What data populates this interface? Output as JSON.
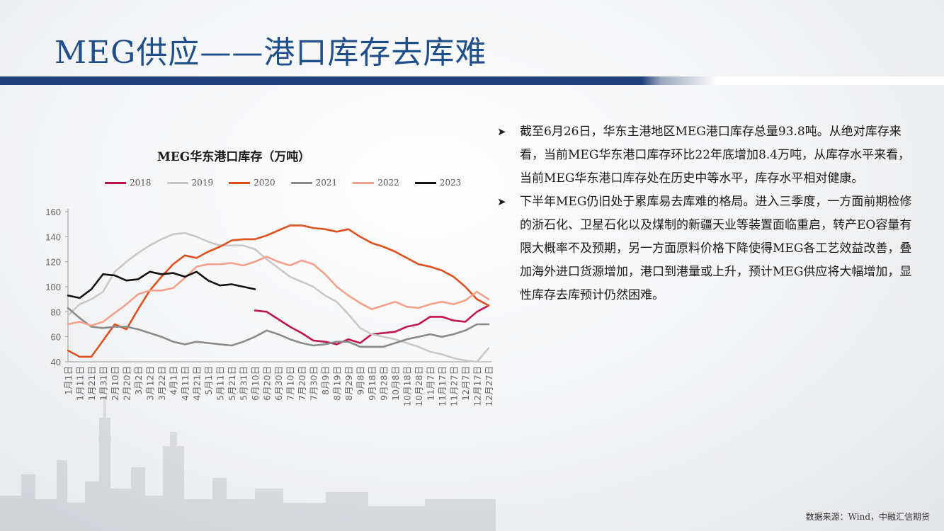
{
  "page": {
    "title": "MEG供应——港口库存去库难",
    "source": "数据来源：Wind，中融汇信期货"
  },
  "bullets": [
    "截至6月26日，华东主港地区MEG港口库存总量93.8吨。从绝对库存来看，当前MEG华东港口库存环比22年底增加8.4万吨，从库存水平来看，当前MEG华东港口库存处在历史中等水平，库存水平相对健康。",
    "下半年MEG仍旧处于累库易去库难的格局。进入三季度，一方面前期检修的浙石化、卫星石化以及煤制的新疆天业等装置面临重启，转产EO容量有限大概率不及预期，另一方面原料价格下降使得MEG各工艺效益改善，叠加海外进口货源增加，港口到港量或上升，预计MEG供应将大幅增加，显性库存去库预计仍然困难。"
  ],
  "chart_data": {
    "type": "line",
    "title": "MEG华东港口库存（万吨）",
    "ylim": [
      40,
      160
    ],
    "yticks": [
      40,
      60,
      80,
      100,
      120,
      140,
      160
    ],
    "grid": false,
    "legend": "top",
    "categories": [
      "1月1日",
      "1月11日",
      "1月21日",
      "1月31日",
      "2月10日",
      "2月20日",
      "3月2日",
      "3月12日",
      "3月22日",
      "4月1日",
      "4月11日",
      "4月21日",
      "5月1日",
      "5月11日",
      "5月21日",
      "5月31日",
      "6月10日",
      "6月20日",
      "6月30日",
      "7月10日",
      "7月20日",
      "7月30日",
      "8月9日",
      "8月19日",
      "8月29日",
      "9月8日",
      "9月18日",
      "9月28日",
      "10月8日",
      "10月18日",
      "10月28日",
      "11月7日",
      "11月17日",
      "11月27日",
      "12月7日",
      "12月17日",
      "12月27日"
    ],
    "series": [
      {
        "name": "2018",
        "color": "#c0144c",
        "values": [
          null,
          null,
          null,
          null,
          null,
          null,
          null,
          null,
          null,
          null,
          null,
          null,
          null,
          null,
          null,
          null,
          81,
          80,
          74,
          68,
          63,
          57,
          56,
          54,
          58,
          55,
          62,
          63,
          64,
          68,
          70,
          76,
          76,
          73,
          72,
          80,
          85
        ]
      },
      {
        "name": "2019",
        "color": "#c8c8c8",
        "values": [
          77,
          86,
          90,
          96,
          112,
          120,
          127,
          133,
          138,
          142,
          143,
          140,
          136,
          133,
          133,
          133,
          130,
          122,
          115,
          108,
          104,
          100,
          93,
          88,
          78,
          67,
          62,
          60,
          58,
          55,
          52,
          48,
          46,
          43,
          41,
          40,
          51
        ]
      },
      {
        "name": "2020",
        "color": "#e0501e",
        "values": [
          49,
          44,
          44,
          57,
          70,
          66,
          82,
          97,
          108,
          118,
          125,
          123,
          128,
          132,
          137,
          138,
          138,
          141,
          145,
          149,
          149,
          147,
          146,
          144,
          146,
          140,
          135,
          132,
          128,
          123,
          118,
          116,
          113,
          108,
          100,
          90,
          85
        ]
      },
      {
        "name": "2021",
        "color": "#8a8a8a",
        "values": [
          83,
          75,
          68,
          67,
          68,
          68,
          66,
          63,
          60,
          56,
          54,
          56,
          55,
          54,
          53,
          56,
          60,
          65,
          62,
          58,
          55,
          53,
          54,
          56,
          56,
          52,
          52,
          52,
          55,
          58,
          60,
          62,
          60,
          62,
          65,
          70,
          70
        ]
      },
      {
        "name": "2022",
        "color": "#f5a08a",
        "values": [
          70,
          72,
          69,
          72,
          79,
          86,
          94,
          97,
          97,
          99,
          107,
          116,
          118,
          118,
          119,
          117,
          120,
          124,
          120,
          117,
          121,
          118,
          110,
          100,
          93,
          87,
          82,
          85,
          88,
          84,
          83,
          86,
          88,
          86,
          89,
          96,
          90
        ]
      },
      {
        "name": "2023",
        "color": "#111111",
        "values": [
          93,
          91,
          98,
          110,
          109,
          105,
          106,
          112,
          110,
          111,
          108,
          112,
          105,
          101,
          102,
          100,
          98,
          null,
          null,
          null,
          null,
          null,
          null,
          null,
          null,
          null,
          null,
          null,
          null,
          null,
          null,
          null,
          null,
          null,
          null,
          null,
          null
        ]
      }
    ]
  }
}
